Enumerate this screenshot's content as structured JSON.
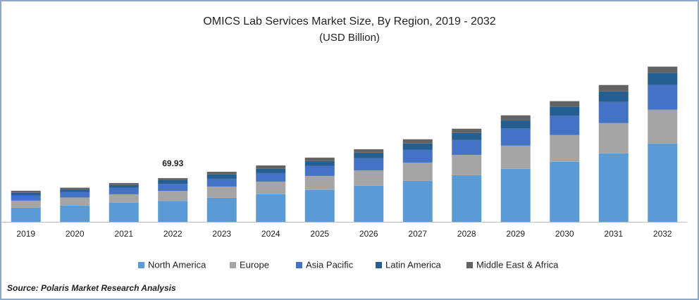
{
  "chart_data": {
    "type": "stacked_bar",
    "title": "OMICS Lab Services Market Size, By Region, 2019 - 2032",
    "subtitle": "(USD Billion)",
    "categories": [
      "2019",
      "2020",
      "2021",
      "2022",
      "2023",
      "2024",
      "2025",
      "2026",
      "2027",
      "2028",
      "2029",
      "2030",
      "2031",
      "2032"
    ],
    "series": [
      {
        "name": "North America",
        "color": "#5b9bd5",
        "values": [
          22.6,
          26,
          30.5,
          33.5,
          38.4,
          44,
          50.8,
          57.5,
          65.4,
          74.4,
          84.6,
          95.9,
          109.4,
          125.2
        ]
      },
      {
        "name": "Europe",
        "color": "#a5a5a5",
        "values": [
          11.3,
          12.9,
          13.5,
          15.8,
          18,
          20.3,
          22.6,
          24.8,
          29.3,
          32.7,
          37.2,
          42.9,
          48.5,
          54.1
        ]
      },
      {
        "name": "Asia Pacific",
        "color": "#4472c4",
        "values": [
          7.9,
          9,
          10.2,
          11.3,
          12.4,
          13.5,
          15.8,
          19.2,
          20.3,
          23.7,
          27.1,
          30.5,
          33.8,
          39.5
        ]
      },
      {
        "name": "Latin America",
        "color": "#255e91",
        "values": [
          4.5,
          3.8,
          4.5,
          5.9,
          6.8,
          6.8,
          7.9,
          9,
          10.2,
          11.3,
          13.5,
          14.7,
          16.9,
          19.2
        ]
      },
      {
        "name": "Middle East & Africa",
        "color": "#636363",
        "values": [
          3.4,
          2.9,
          3.4,
          3.43,
          4.5,
          5.6,
          5.6,
          5.6,
          6.8,
          6.8,
          7.9,
          9,
          10.2,
          10.2
        ]
      }
    ],
    "annotations": [
      {
        "x": "2022",
        "value": 69.93
      }
    ],
    "ylim": [
      0,
      250
    ],
    "source": "Source: Polaris  Market Research Analysis"
  }
}
